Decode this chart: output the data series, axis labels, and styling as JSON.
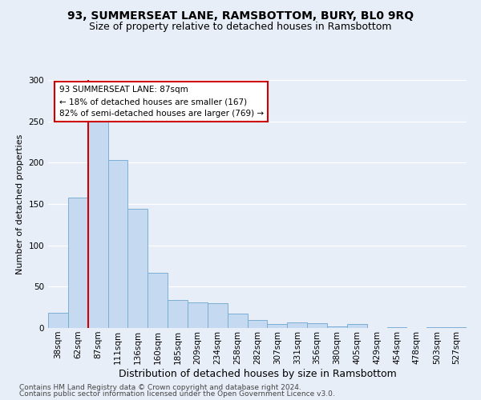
{
  "title": "93, SUMMERSEAT LANE, RAMSBOTTOM, BURY, BL0 9RQ",
  "subtitle": "Size of property relative to detached houses in Ramsbottom",
  "xlabel": "Distribution of detached houses by size in Ramsbottom",
  "ylabel": "Number of detached properties",
  "categories": [
    "38sqm",
    "62sqm",
    "87sqm",
    "111sqm",
    "136sqm",
    "160sqm",
    "185sqm",
    "209sqm",
    "234sqm",
    "258sqm",
    "282sqm",
    "307sqm",
    "331sqm",
    "356sqm",
    "380sqm",
    "405sqm",
    "429sqm",
    "454sqm",
    "478sqm",
    "503sqm",
    "527sqm"
  ],
  "values": [
    18,
    158,
    250,
    203,
    144,
    67,
    34,
    31,
    30,
    17,
    10,
    5,
    7,
    6,
    2,
    5,
    0,
    1,
    0,
    1,
    1
  ],
  "bar_color": "#c5d9f0",
  "bar_edge_color": "#7bafd4",
  "vline_color": "#cc0000",
  "annotation_text": "93 SUMMERSEAT LANE: 87sqm\n← 18% of detached houses are smaller (167)\n82% of semi-detached houses are larger (769) →",
  "annotation_box_color": "#ffffff",
  "annotation_box_edge_color": "#cc0000",
  "ylim": [
    0,
    300
  ],
  "yticks": [
    0,
    50,
    100,
    150,
    200,
    250,
    300
  ],
  "footer1": "Contains HM Land Registry data © Crown copyright and database right 2024.",
  "footer2": "Contains public sector information licensed under the Open Government Licence v3.0.",
  "title_fontsize": 10,
  "subtitle_fontsize": 9,
  "xlabel_fontsize": 9,
  "ylabel_fontsize": 8,
  "tick_fontsize": 7.5,
  "annotation_fontsize": 7.5,
  "footer_fontsize": 6.5,
  "background_color": "#e8eef8",
  "grid_color": "#ffffff"
}
